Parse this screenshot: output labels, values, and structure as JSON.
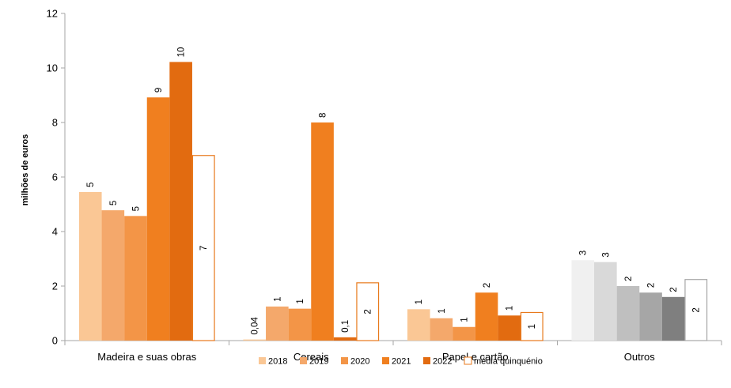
{
  "chart_data": {
    "type": "bar",
    "ylabel": "milhões de euros",
    "ylim": [
      0,
      12
    ],
    "yticks": [
      0,
      2,
      4,
      6,
      8,
      10,
      12
    ],
    "grid": false,
    "legend_position": "bottom",
    "categories": [
      "Madeira e suas obras",
      "Cereais",
      "Papel e cartão",
      "Outros"
    ],
    "series": [
      {
        "name": "2018",
        "values": [
          5.45,
          0.04,
          1.15,
          2.95
        ],
        "labels": [
          "5",
          "0,04",
          "1",
          "3"
        ]
      },
      {
        "name": "2019",
        "values": [
          4.78,
          1.25,
          0.82,
          2.88
        ],
        "labels": [
          "5",
          "1",
          "1",
          "3"
        ]
      },
      {
        "name": "2020",
        "values": [
          4.57,
          1.17,
          0.5,
          2.0
        ],
        "labels": [
          "5",
          "1",
          "1",
          "2"
        ]
      },
      {
        "name": "2021",
        "values": [
          8.92,
          8.0,
          1.76,
          1.76
        ],
        "labels": [
          "9",
          "8",
          "2",
          "2"
        ]
      },
      {
        "name": "2022",
        "values": [
          10.22,
          0.12,
          0.92,
          1.6
        ],
        "labels": [
          "10",
          "0,1",
          "1",
          "2"
        ]
      },
      {
        "name": "média quinquénio",
        "values": [
          6.79,
          2.12,
          1.03,
          2.24
        ],
        "labels": [
          "7",
          "2",
          "1",
          "2"
        ]
      }
    ],
    "colors": {
      "orange": [
        "#fac795",
        "#f4a86b",
        "#f39547",
        "#f07f1f",
        "#e26b10",
        "#ffffff"
      ],
      "orange_outline": "#e8791b",
      "grey": [
        "#f0f0f0",
        "#d9d9d9",
        "#bfbfbf",
        "#a6a6a6",
        "#7f7f7f",
        "#ffffff"
      ],
      "grey_outline": "#a6a6a6",
      "legend": [
        "#fac795",
        "#f4a86b",
        "#f39547",
        "#f07f1f",
        "#e26b10",
        "#ffffff"
      ]
    }
  }
}
